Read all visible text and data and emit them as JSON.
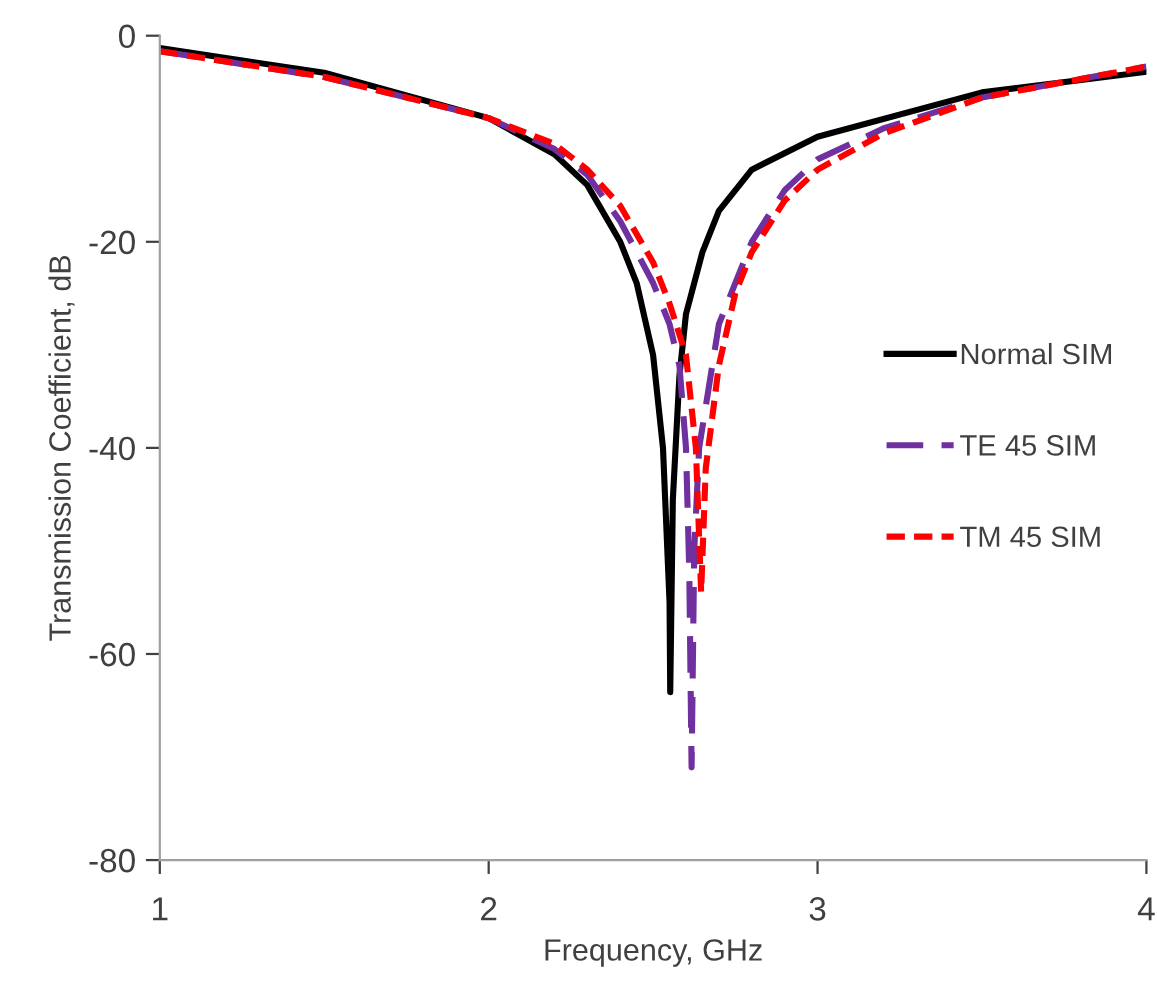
{
  "chart_data": {
    "type": "line",
    "xlabel": "Frequency, GHz",
    "ylabel": "Transmission Coefficient, dB",
    "xlim": [
      1,
      4
    ],
    "ylim": [
      -80,
      0
    ],
    "xticks": [
      1,
      2,
      3,
      4
    ],
    "yticks": [
      -80,
      -60,
      -40,
      -20,
      0
    ],
    "grid": false,
    "legend": "right",
    "marker": "none",
    "series": [
      {
        "name": "Normal SIM",
        "color": "#000000",
        "line_style": "solid",
        "x": [
          1.0,
          1.5,
          2.0,
          2.2,
          2.3,
          2.4,
          2.45,
          2.5,
          2.53,
          2.55,
          2.552,
          2.56,
          2.58,
          2.6,
          2.65,
          2.7,
          2.8,
          3.0,
          3.5,
          4.0
        ],
        "values": [
          -1.2,
          -3.6,
          -8,
          -11.5,
          -14.5,
          -20,
          -24,
          -31,
          -40,
          -55,
          -63.7,
          -45,
          -33,
          -27,
          -21,
          -17,
          -13,
          -9.8,
          -5.5,
          -3.5
        ]
      },
      {
        "name": "TE 45 SIM",
        "color": "#7030a0",
        "line_style": "dashed",
        "x": [
          1.0,
          1.5,
          2.0,
          2.2,
          2.3,
          2.4,
          2.5,
          2.55,
          2.58,
          2.6,
          2.61,
          2.617,
          2.625,
          2.64,
          2.7,
          2.8,
          2.9,
          3.0,
          3.2,
          3.5,
          4.0
        ],
        "values": [
          -1.5,
          -4,
          -8,
          -11,
          -13.5,
          -18,
          -24,
          -28,
          -32,
          -40,
          -52,
          -71,
          -50,
          -40,
          -28,
          -20,
          -15,
          -12,
          -9,
          -6,
          -3
        ]
      },
      {
        "name": "TM 45 SIM",
        "color": "#ff0000",
        "line_style": "dotted",
        "x": [
          1.0,
          1.5,
          2.0,
          2.2,
          2.3,
          2.4,
          2.5,
          2.55,
          2.6,
          2.63,
          2.646,
          2.66,
          2.7,
          2.75,
          2.8,
          2.9,
          3.0,
          3.2,
          3.5,
          4.0
        ],
        "values": [
          -1.5,
          -4,
          -8,
          -10.5,
          -13,
          -16.5,
          -22,
          -26,
          -31,
          -40,
          -54,
          -42,
          -32,
          -25,
          -21,
          -16,
          -13,
          -9.5,
          -6,
          -3
        ]
      }
    ]
  }
}
